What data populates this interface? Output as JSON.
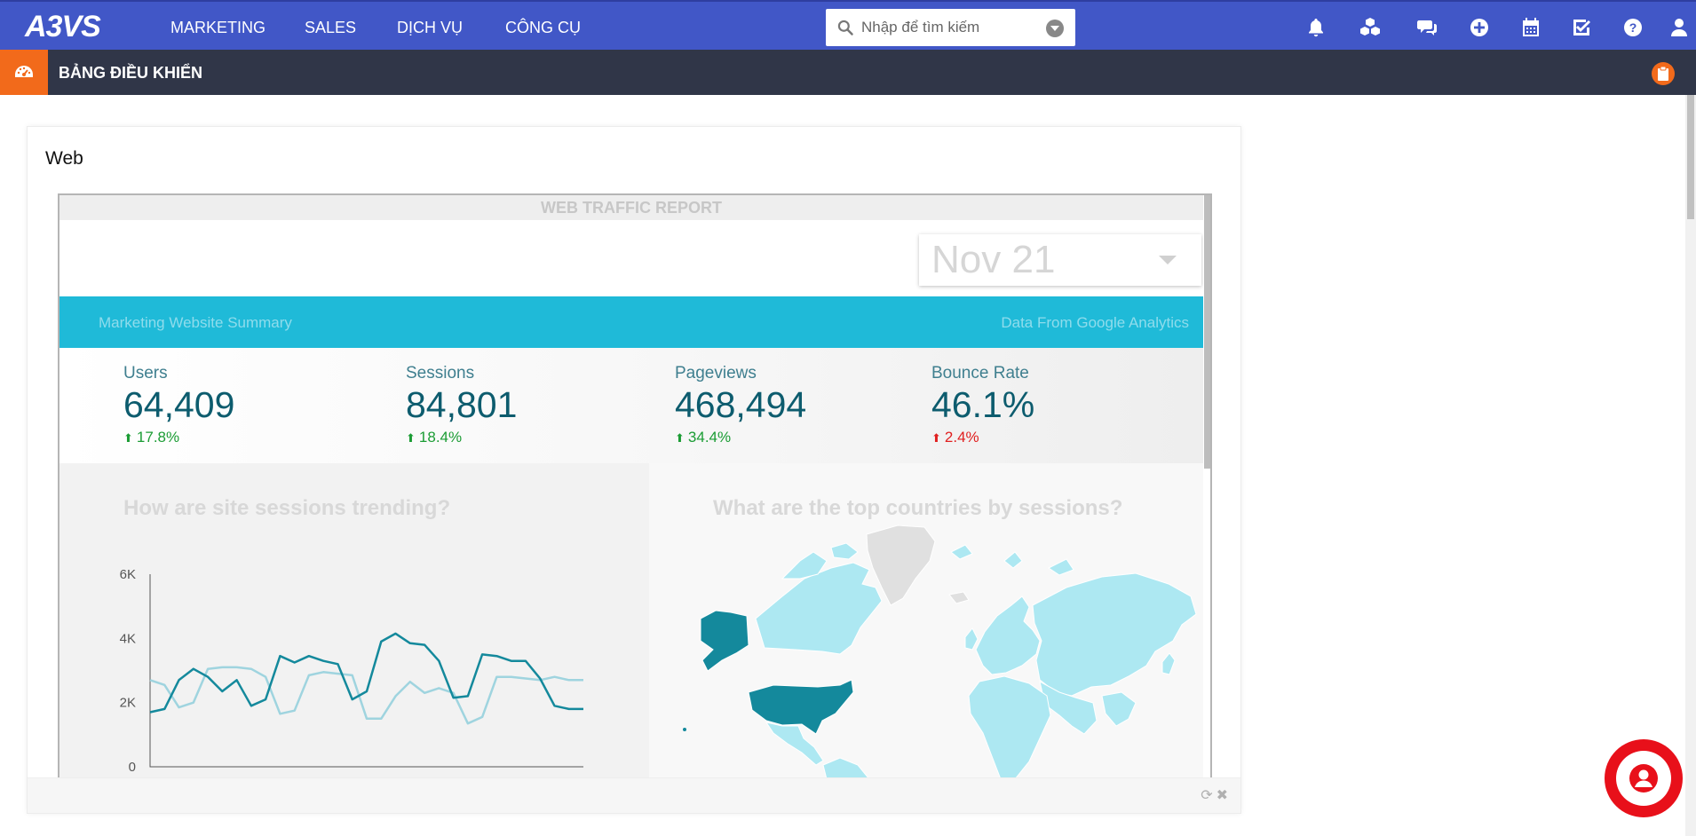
{
  "app": {
    "logo_text": "A3VS"
  },
  "topnav": {
    "items": [
      "MARKETING",
      "SALES",
      "DỊCH VỤ",
      "CÔNG CỤ"
    ],
    "search_placeholder": "Nhập để tìm kiếm",
    "icons": [
      "bell-icon",
      "cubes-icon",
      "comments-icon",
      "plus-circle-icon",
      "calendar-icon",
      "checkbox-icon",
      "help-icon",
      "user-icon"
    ],
    "bg_color": "#4157c7"
  },
  "subbar": {
    "title": "BẢNG ĐIỀU KHIỂN",
    "accent_color": "#f26a1b"
  },
  "panel": {
    "title": "Web"
  },
  "report": {
    "header": "WEB TRAFFIC REPORT",
    "date_value": "Nov 21",
    "band_left": "Marketing Website Summary",
    "band_right": "Data From Google Analytics",
    "kpis": [
      {
        "label": "Users",
        "value": "64,409",
        "delta": "17.8%",
        "direction": "up"
      },
      {
        "label": "Sessions",
        "value": "84,801",
        "delta": "18.4%",
        "direction": "up"
      },
      {
        "label": "Pageviews",
        "value": "468,494",
        "delta": "34.4%",
        "direction": "up"
      },
      {
        "label": "Bounce Rate",
        "value": "46.1%",
        "delta": "2.4%",
        "direction": "down"
      }
    ],
    "q_sessions": "How are site sessions trending?",
    "q_countries": "What are the top countries by sessions?"
  },
  "chart_data": {
    "type": "line",
    "title": "",
    "xlabel": "",
    "ylabel": "",
    "ylim": [
      0,
      6000
    ],
    "y_ticks": [
      "0",
      "2K",
      "4K",
      "6K"
    ],
    "y_tick_values": [
      0,
      2000,
      4000,
      6000
    ],
    "x": [
      1,
      2,
      3,
      4,
      5,
      6,
      7,
      8,
      9,
      10,
      11,
      12,
      13,
      14,
      15,
      16,
      17,
      18,
      19,
      20,
      21,
      22,
      23,
      24,
      25,
      26,
      27,
      28,
      29,
      30,
      31
    ],
    "series": [
      {
        "color": "#14899c",
        "values": [
          1700,
          1800,
          2700,
          3050,
          2800,
          2350,
          2700,
          1900,
          2100,
          3450,
          3250,
          3450,
          3300,
          3200,
          2100,
          2350,
          3900,
          4150,
          3850,
          3800,
          3300,
          2150,
          2200,
          3500,
          3450,
          3300,
          3300,
          2750,
          1900,
          1800,
          1800
        ]
      },
      {
        "color": "#9fd4df",
        "values": [
          2700,
          2550,
          1850,
          2000,
          3050,
          3100,
          3100,
          3050,
          2800,
          1650,
          1750,
          2850,
          2950,
          2900,
          2850,
          1500,
          1500,
          2200,
          2650,
          2300,
          2450,
          2300,
          1350,
          1550,
          2800,
          2800,
          2750,
          2700,
          2800,
          2700,
          2700
        ]
      }
    ]
  },
  "map_colors": {
    "dark": "#14899c",
    "light": "#ade8f2",
    "none": "#e0e0e0"
  },
  "chat": {
    "icon": "user-circle-icon",
    "color": "#e8101a"
  }
}
